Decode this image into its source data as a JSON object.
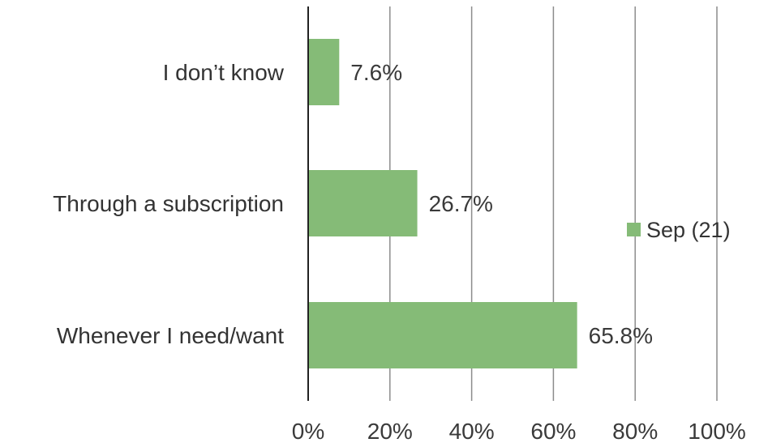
{
  "chart_data": {
    "type": "bar",
    "orientation": "horizontal",
    "categories": [
      "I don’t know",
      "Through a subscription",
      "Whenever I need/want"
    ],
    "series": [
      {
        "name": "Sep (21)",
        "values": [
          7.6,
          26.7,
          65.8
        ],
        "color": "#85bb77"
      }
    ],
    "data_labels": [
      "7.6%",
      "26.7%",
      "65.8%"
    ],
    "x_ticks": [
      "0%",
      "20%",
      "40%",
      "60%",
      "80%",
      "100%"
    ],
    "xlim": [
      0,
      100
    ],
    "grid": true,
    "legend_position": "right"
  }
}
